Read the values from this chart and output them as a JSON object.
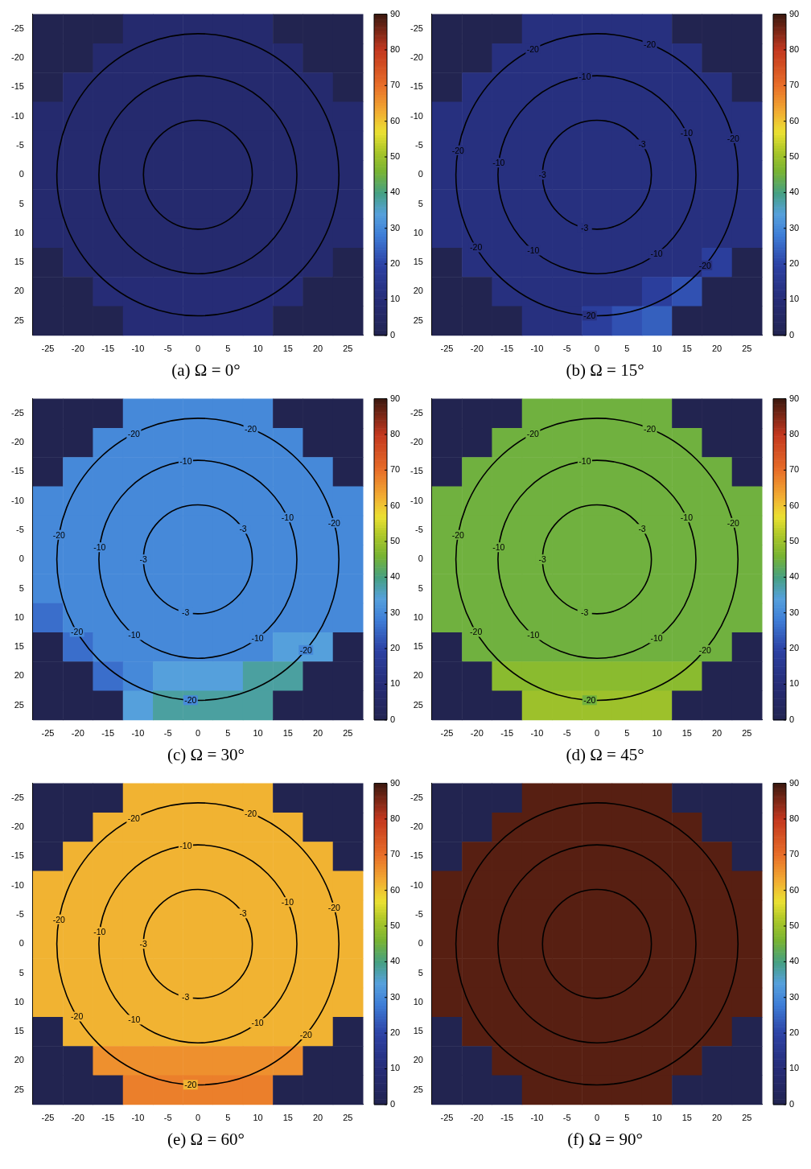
{
  "chart_data": [
    {
      "type": "heatmap",
      "title": "(a) Ω = 0°",
      "categories": [
        "-25",
        "-20",
        "-15",
        "-10",
        "-5",
        "0",
        "5",
        "10",
        "15",
        "20",
        "25"
      ],
      "y_categories": [
        "-25",
        "-20",
        "-15",
        "-10",
        "-5",
        "0",
        "5",
        "10",
        "15",
        "20",
        "25"
      ],
      "cells": [
        [
          0,
          0,
          0,
          8,
          8,
          8,
          8,
          8,
          0,
          0,
          0
        ],
        [
          0,
          0,
          8,
          8,
          8,
          8,
          8,
          8,
          8,
          0,
          0
        ],
        [
          0,
          8,
          8,
          8,
          8,
          8,
          8,
          8,
          8,
          8,
          0
        ],
        [
          8,
          8,
          8,
          8,
          8,
          8,
          8,
          8,
          8,
          8,
          8
        ],
        [
          8,
          8,
          8,
          8,
          8,
          8,
          8,
          8,
          8,
          8,
          8
        ],
        [
          8,
          8,
          8,
          8,
          8,
          8,
          8,
          8,
          8,
          8,
          8
        ],
        [
          8,
          8,
          8,
          8,
          8,
          8,
          8,
          8,
          8,
          8,
          8
        ],
        [
          8,
          8,
          8,
          8,
          8,
          8,
          8,
          8,
          8,
          8,
          8
        ],
        [
          0,
          8,
          8,
          8,
          8,
          8,
          8,
          8,
          8,
          8,
          0
        ],
        [
          0,
          0,
          10,
          10,
          10,
          10,
          10,
          10,
          10,
          0,
          0
        ],
        [
          0,
          0,
          0,
          10,
          10,
          10,
          10,
          10,
          0,
          0,
          0
        ]
      ],
      "clim": [
        0,
        90
      ],
      "cticks": [
        0,
        10,
        20,
        30,
        40,
        50,
        60,
        70,
        80,
        90
      ]
    },
    {
      "type": "heatmap",
      "title": "(b) Ω = 15°",
      "categories": [
        "-25",
        "-20",
        "-15",
        "-10",
        "-5",
        "0",
        "5",
        "10",
        "15",
        "20",
        "25"
      ],
      "y_categories": [
        "-25",
        "-20",
        "-15",
        "-10",
        "-5",
        "0",
        "5",
        "10",
        "15",
        "20",
        "25"
      ],
      "cells": [
        [
          0,
          0,
          0,
          12,
          12,
          12,
          12,
          12,
          0,
          0,
          0
        ],
        [
          0,
          0,
          12,
          12,
          12,
          12,
          12,
          12,
          12,
          0,
          0
        ],
        [
          0,
          12,
          12,
          12,
          12,
          12,
          12,
          12,
          12,
          12,
          0
        ],
        [
          12,
          12,
          12,
          12,
          12,
          12,
          12,
          12,
          12,
          12,
          12
        ],
        [
          12,
          12,
          12,
          12,
          12,
          12,
          12,
          12,
          12,
          12,
          12
        ],
        [
          12,
          12,
          12,
          12,
          12,
          12,
          12,
          12,
          12,
          12,
          12
        ],
        [
          12,
          12,
          12,
          12,
          12,
          12,
          12,
          12,
          12,
          12,
          12
        ],
        [
          12,
          12,
          12,
          12,
          12,
          12,
          12,
          12,
          12,
          12,
          12
        ],
        [
          0,
          12,
          12,
          12,
          12,
          12,
          12,
          12,
          12,
          18,
          0
        ],
        [
          0,
          0,
          12,
          12,
          12,
          12,
          12,
          18,
          22,
          0,
          0
        ],
        [
          0,
          0,
          0,
          12,
          12,
          18,
          22,
          24,
          0,
          0,
          0
        ]
      ],
      "clim": [
        0,
        90
      ],
      "cticks": [
        0,
        10,
        20,
        30,
        40,
        50,
        60,
        70,
        80,
        90
      ],
      "annotations": [
        "-20",
        "-20",
        "-20",
        "-20",
        "-20",
        "-20",
        "-20",
        "-10",
        "-10",
        "-10",
        "-10",
        "-10",
        "-3",
        "-3",
        "-3"
      ]
    },
    {
      "type": "heatmap",
      "title": "(c) Ω = 30°",
      "categories": [
        "-25",
        "-20",
        "-15",
        "-10",
        "-5",
        "0",
        "5",
        "10",
        "15",
        "20",
        "25"
      ],
      "y_categories": [
        "-25",
        "-20",
        "-15",
        "-10",
        "-5",
        "0",
        "5",
        "10",
        "15",
        "20",
        "25"
      ],
      "cells": [
        [
          0,
          0,
          0,
          30,
          30,
          30,
          30,
          30,
          0,
          0,
          0
        ],
        [
          0,
          0,
          30,
          30,
          30,
          30,
          30,
          30,
          30,
          0,
          0
        ],
        [
          0,
          30,
          30,
          30,
          30,
          30,
          30,
          30,
          30,
          30,
          0
        ],
        [
          30,
          30,
          30,
          30,
          30,
          30,
          30,
          30,
          30,
          30,
          30
        ],
        [
          30,
          30,
          30,
          30,
          30,
          30,
          30,
          30,
          30,
          30,
          30
        ],
        [
          30,
          30,
          30,
          30,
          30,
          30,
          30,
          30,
          30,
          30,
          30
        ],
        [
          30,
          30,
          30,
          30,
          30,
          30,
          30,
          30,
          30,
          30,
          30
        ],
        [
          26,
          30,
          30,
          30,
          30,
          30,
          30,
          30,
          30,
          30,
          30
        ],
        [
          0,
          26,
          30,
          30,
          30,
          30,
          30,
          30,
          34,
          34,
          0
        ],
        [
          0,
          0,
          26,
          30,
          34,
          34,
          34,
          38,
          38,
          0,
          0
        ],
        [
          0,
          0,
          0,
          34,
          38,
          38,
          38,
          38,
          0,
          0,
          0
        ]
      ],
      "clim": [
        0,
        90
      ],
      "cticks": [
        0,
        10,
        20,
        30,
        40,
        50,
        60,
        70,
        80,
        90
      ],
      "annotations": [
        "-20",
        "-20",
        "-20",
        "-20",
        "-20",
        "-20",
        "-20",
        "-10",
        "-10",
        "-10",
        "-10",
        "-10",
        "-3",
        "-3",
        "-3"
      ]
    },
    {
      "type": "heatmap",
      "title": "(d) Ω = 45°",
      "categories": [
        "-25",
        "-20",
        "-15",
        "-10",
        "-5",
        "0",
        "5",
        "10",
        "15",
        "20",
        "25"
      ],
      "y_categories": [
        "-25",
        "-20",
        "-15",
        "-10",
        "-5",
        "0",
        "5",
        "10",
        "15",
        "20",
        "25"
      ],
      "cells": [
        [
          0,
          0,
          0,
          45,
          45,
          45,
          45,
          45,
          0,
          0,
          0
        ],
        [
          0,
          0,
          45,
          45,
          45,
          45,
          45,
          45,
          45,
          0,
          0
        ],
        [
          0,
          45,
          45,
          45,
          45,
          45,
          45,
          45,
          45,
          45,
          0
        ],
        [
          45,
          45,
          45,
          45,
          45,
          45,
          45,
          45,
          45,
          45,
          45
        ],
        [
          45,
          45,
          45,
          45,
          45,
          45,
          45,
          45,
          45,
          45,
          45
        ],
        [
          45,
          45,
          45,
          45,
          45,
          45,
          45,
          45,
          45,
          45,
          45
        ],
        [
          45,
          45,
          45,
          45,
          45,
          45,
          45,
          45,
          45,
          45,
          45
        ],
        [
          45,
          45,
          45,
          45,
          45,
          45,
          45,
          45,
          45,
          45,
          45
        ],
        [
          0,
          45,
          45,
          45,
          45,
          45,
          45,
          45,
          45,
          45,
          0
        ],
        [
          0,
          0,
          48,
          48,
          48,
          48,
          48,
          48,
          48,
          0,
          0
        ],
        [
          0,
          0,
          0,
          50,
          50,
          50,
          50,
          50,
          0,
          0,
          0
        ]
      ],
      "clim": [
        0,
        90
      ],
      "cticks": [
        0,
        10,
        20,
        30,
        40,
        50,
        60,
        70,
        80,
        90
      ],
      "annotations": [
        "-20",
        "-20",
        "-20",
        "-20",
        "-20",
        "-20",
        "-20",
        "-10",
        "-10",
        "-10",
        "-10",
        "-10",
        "-3",
        "-3",
        "-3"
      ]
    },
    {
      "type": "heatmap",
      "title": "(e) Ω = 60°",
      "categories": [
        "-25",
        "-20",
        "-15",
        "-10",
        "-5",
        "0",
        "5",
        "10",
        "15",
        "20",
        "25"
      ],
      "y_categories": [
        "-25",
        "-20",
        "-15",
        "-10",
        "-5",
        "0",
        "5",
        "10",
        "15",
        "20",
        "25"
      ],
      "cells": [
        [
          0,
          0,
          0,
          62,
          62,
          62,
          62,
          62,
          0,
          0,
          0
        ],
        [
          0,
          0,
          62,
          62,
          62,
          62,
          62,
          62,
          62,
          0,
          0
        ],
        [
          0,
          62,
          62,
          62,
          62,
          62,
          62,
          62,
          62,
          62,
          0
        ],
        [
          62,
          62,
          62,
          62,
          62,
          62,
          62,
          62,
          62,
          62,
          62
        ],
        [
          62,
          62,
          62,
          62,
          62,
          62,
          62,
          62,
          62,
          62,
          62
        ],
        [
          62,
          62,
          62,
          62,
          62,
          62,
          62,
          62,
          62,
          62,
          62
        ],
        [
          62,
          62,
          62,
          62,
          62,
          62,
          62,
          62,
          62,
          62,
          62
        ],
        [
          62,
          62,
          62,
          62,
          62,
          62,
          62,
          62,
          62,
          62,
          62
        ],
        [
          0,
          62,
          62,
          62,
          62,
          62,
          62,
          62,
          62,
          62,
          0
        ],
        [
          0,
          0,
          66,
          66,
          66,
          66,
          66,
          66,
          66,
          0,
          0
        ],
        [
          0,
          0,
          0,
          68,
          68,
          68,
          68,
          68,
          0,
          0,
          0
        ]
      ],
      "clim": [
        0,
        90
      ],
      "cticks": [
        0,
        10,
        20,
        30,
        40,
        50,
        60,
        70,
        80,
        90
      ],
      "annotations": [
        "-20",
        "-20",
        "-20",
        "-20",
        "-20",
        "-20",
        "-20",
        "-10",
        "-10",
        "-10",
        "-10",
        "-10",
        "-3",
        "-3",
        "-3"
      ]
    },
    {
      "type": "heatmap",
      "title": "(f) Ω = 90°",
      "categories": [
        "-25",
        "-20",
        "-15",
        "-10",
        "-5",
        "0",
        "5",
        "10",
        "15",
        "20",
        "25"
      ],
      "y_categories": [
        "-25",
        "-20",
        "-15",
        "-10",
        "-5",
        "0",
        "5",
        "10",
        "15",
        "20",
        "25"
      ],
      "cells": [
        [
          0,
          0,
          0,
          88,
          88,
          88,
          88,
          88,
          0,
          0,
          0
        ],
        [
          0,
          0,
          88,
          88,
          88,
          88,
          88,
          88,
          88,
          0,
          0
        ],
        [
          0,
          88,
          88,
          88,
          88,
          88,
          88,
          88,
          88,
          88,
          0
        ],
        [
          88,
          88,
          88,
          88,
          88,
          88,
          88,
          88,
          88,
          88,
          88
        ],
        [
          88,
          88,
          88,
          88,
          88,
          88,
          88,
          88,
          88,
          88,
          88
        ],
        [
          88,
          88,
          88,
          88,
          88,
          88,
          88,
          88,
          88,
          88,
          88
        ],
        [
          88,
          88,
          88,
          88,
          88,
          88,
          88,
          88,
          88,
          88,
          88
        ],
        [
          88,
          88,
          88,
          88,
          88,
          88,
          88,
          88,
          88,
          88,
          88
        ],
        [
          0,
          88,
          88,
          88,
          88,
          88,
          88,
          88,
          88,
          88,
          0
        ],
        [
          0,
          0,
          88,
          88,
          88,
          88,
          88,
          88,
          88,
          0,
          0
        ],
        [
          0,
          0,
          0,
          88,
          88,
          88,
          88,
          88,
          0,
          0,
          0
        ]
      ],
      "clim": [
        0,
        90
      ],
      "cticks": [
        0,
        10,
        20,
        30,
        40,
        50,
        60,
        70,
        80,
        90
      ]
    }
  ]
}
